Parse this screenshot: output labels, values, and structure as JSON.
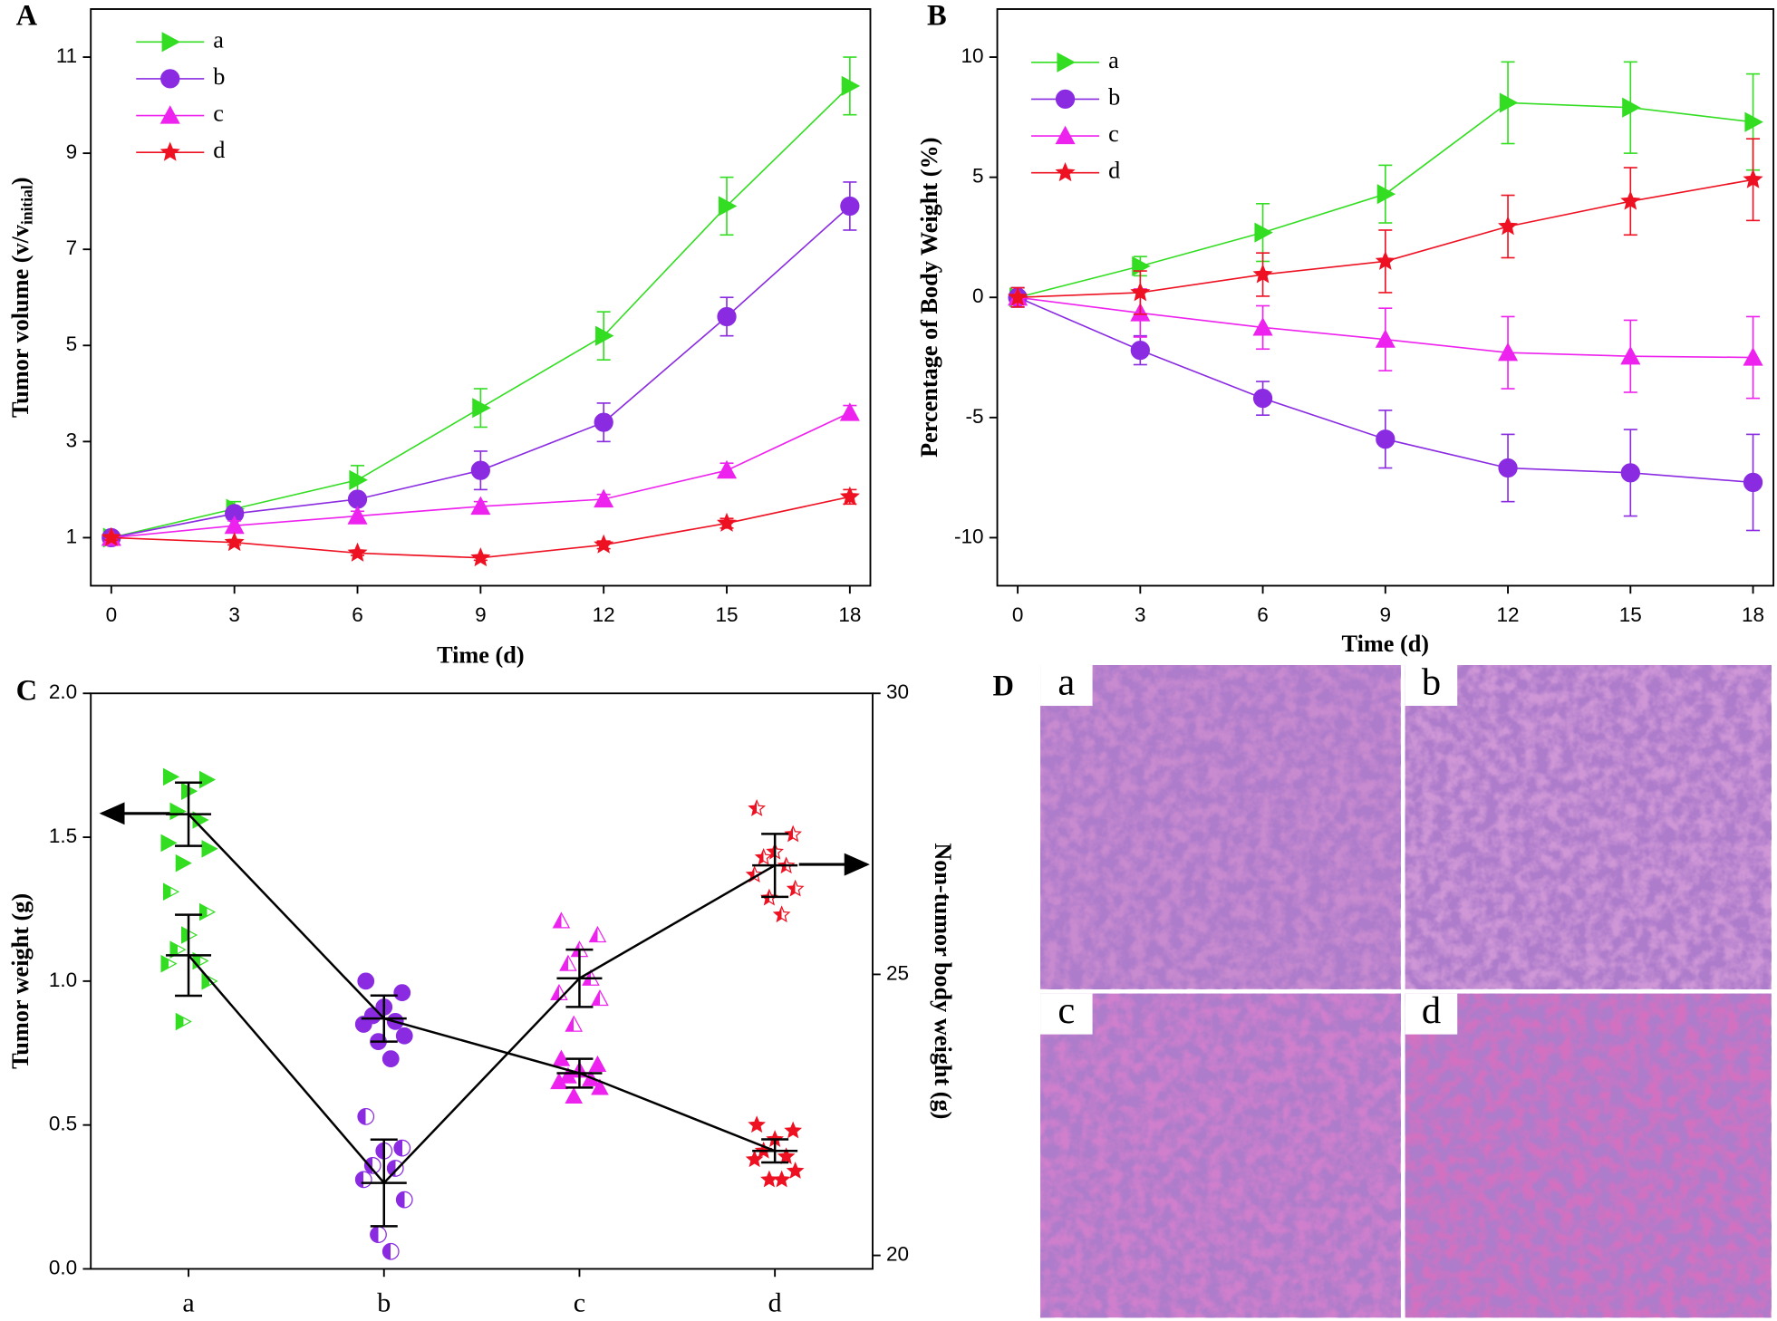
{
  "chart_data": [
    {
      "type": "line",
      "panel": "A",
      "xlabel": "Time (d)",
      "ylabel_parts": [
        "Tumor volume (v/v",
        "initial",
        ")"
      ],
      "x": [
        0,
        3,
        6,
        9,
        12,
        15,
        18
      ],
      "xlim": [
        -0.5,
        18.5
      ],
      "xticks": [
        0,
        3,
        6,
        9,
        12,
        15,
        18
      ],
      "ylim": [
        0,
        12
      ],
      "yticks": [
        1,
        3,
        5,
        7,
        9,
        11
      ],
      "legend": "upper left",
      "series": [
        {
          "name": "a",
          "color": "#33dd22",
          "marker": "tri-right",
          "values": [
            1,
            1.6,
            2.2,
            3.7,
            5.2,
            7.9,
            10.4
          ],
          "errors": [
            0.05,
            0.15,
            0.3,
            0.4,
            0.5,
            0.6,
            0.6
          ]
        },
        {
          "name": "b",
          "color": "#8a2be2",
          "marker": "circle",
          "values": [
            1,
            1.5,
            1.8,
            2.4,
            3.4,
            5.6,
            7.9
          ],
          "errors": [
            0.05,
            0.1,
            0.1,
            0.4,
            0.4,
            0.4,
            0.5
          ]
        },
        {
          "name": "c",
          "color": "#ee22ee",
          "marker": "tri-up",
          "values": [
            1,
            1.25,
            1.45,
            1.65,
            1.8,
            2.4,
            3.6
          ],
          "errors": [
            0.05,
            0.1,
            0.1,
            0.1,
            0.1,
            0.15,
            0.15
          ]
        },
        {
          "name": "d",
          "color": "#ee1122",
          "marker": "star",
          "values": [
            1,
            0.9,
            0.68,
            0.58,
            0.85,
            1.3,
            1.85
          ],
          "errors": [
            0.05,
            0.05,
            0.05,
            0.05,
            0.08,
            0.1,
            0.15
          ]
        }
      ]
    },
    {
      "type": "line",
      "panel": "B",
      "xlabel": "Time (d)",
      "ylabel_parts": [
        "Percentage of Body Weight (%)"
      ],
      "x": [
        0,
        3,
        6,
        9,
        12,
        15,
        18
      ],
      "xlim": [
        -0.5,
        18.5
      ],
      "xticks": [
        0,
        3,
        6,
        9,
        12,
        15,
        18
      ],
      "ylim": [
        -12,
        12
      ],
      "yticks": [
        -10,
        -5,
        0,
        5,
        10
      ],
      "legend": "upper left",
      "series": [
        {
          "name": "a",
          "color": "#33dd22",
          "marker": "tri-right",
          "values": [
            0,
            1.3,
            2.7,
            4.3,
            8.1,
            7.9,
            7.3
          ],
          "errors": [
            0.4,
            0.4,
            1.2,
            1.2,
            1.7,
            1.9,
            2.0
          ]
        },
        {
          "name": "b",
          "color": "#8a2be2",
          "marker": "circle",
          "values": [
            0,
            -2.2,
            -4.2,
            -5.9,
            -7.1,
            -7.3,
            -7.7
          ],
          "errors": [
            0.4,
            0.6,
            0.7,
            1.2,
            1.4,
            1.8,
            2.0
          ]
        },
        {
          "name": "c",
          "color": "#ee22ee",
          "marker": "tri-up",
          "values": [
            0,
            -0.65,
            -1.25,
            -1.75,
            -2.3,
            -2.45,
            -2.5
          ],
          "errors": [
            0.4,
            1.0,
            0.9,
            1.3,
            1.5,
            1.5,
            1.7
          ]
        },
        {
          "name": "d",
          "color": "#ee1122",
          "marker": "star",
          "values": [
            0,
            0.2,
            0.95,
            1.5,
            2.95,
            4.0,
            4.9
          ],
          "errors": [
            0.4,
            0.9,
            0.9,
            1.3,
            1.3,
            1.4,
            1.7
          ]
        }
      ]
    },
    {
      "type": "dot",
      "panel": "C",
      "ylabel": "Tumor weight (g)",
      "y2label": "Non-tumor body weight (g)",
      "categories": [
        "a",
        "b",
        "c",
        "d"
      ],
      "colors": [
        "#33dd22",
        "#8a2be2",
        "#ee22ee",
        "#ee1122"
      ],
      "markers": [
        "tri-right",
        "circle",
        "tri-up",
        "star"
      ],
      "ylim": [
        0,
        2
      ],
      "yticks": [
        {
          "value": 0,
          "label": "0.0"
        },
        0.5,
        {
          "value": 1,
          "label": "1.0"
        },
        1.5,
        {
          "value": 2,
          "label": "2.0"
        }
      ],
      "y2lim": [
        19.76,
        30
      ],
      "y2ticks": [
        20,
        25,
        30
      ],
      "tumor_weight": {
        "fill": "solid",
        "values": [
          1.58,
          0.87,
          0.68,
          0.41
        ],
        "errors": [
          0.11,
          0.08,
          0.05,
          0.04
        ],
        "points": [
          [
            1.71,
            1.7,
            1.66,
            1.59,
            1.56,
            1.48,
            1.46,
            1.41
          ],
          [
            1.0,
            0.96,
            0.91,
            0.88,
            0.86,
            0.85,
            0.81,
            0.79,
            0.73
          ],
          [
            0.73,
            0.71,
            0.69,
            0.67,
            0.66,
            0.65,
            0.63,
            0.6
          ],
          [
            0.5,
            0.48,
            0.45,
            0.41,
            0.39,
            0.38,
            0.34,
            0.31,
            0.31
          ]
        ]
      },
      "body_weight": {
        "axis": "y2",
        "fill": "half",
        "values": [
          25.34,
          21.29,
          24.93,
          26.94
        ],
        "errors": [
          0.72,
          0.77,
          0.51,
          0.56
        ],
        "points": [
          [
            26.47,
            26.11,
            25.7,
            25.44,
            25.24,
            25.19,
            24.88,
            24.16
          ],
          [
            22.47,
            21.91,
            21.86,
            21.6,
            21.55,
            21.35,
            20.99,
            20.37,
            20.07
          ],
          [
            25.95,
            25.7,
            25.44,
            25.19,
            24.93,
            24.67,
            24.57,
            24.11
          ],
          [
            27.95,
            27.49,
            27.18,
            27.08,
            26.93,
            26.77,
            26.52,
            26.36,
            26.06
          ]
        ]
      }
    }
  ],
  "panel_d": {
    "label": "D",
    "images": [
      {
        "label": "a"
      },
      {
        "label": "b"
      },
      {
        "label": "c"
      },
      {
        "label": "d"
      }
    ]
  }
}
